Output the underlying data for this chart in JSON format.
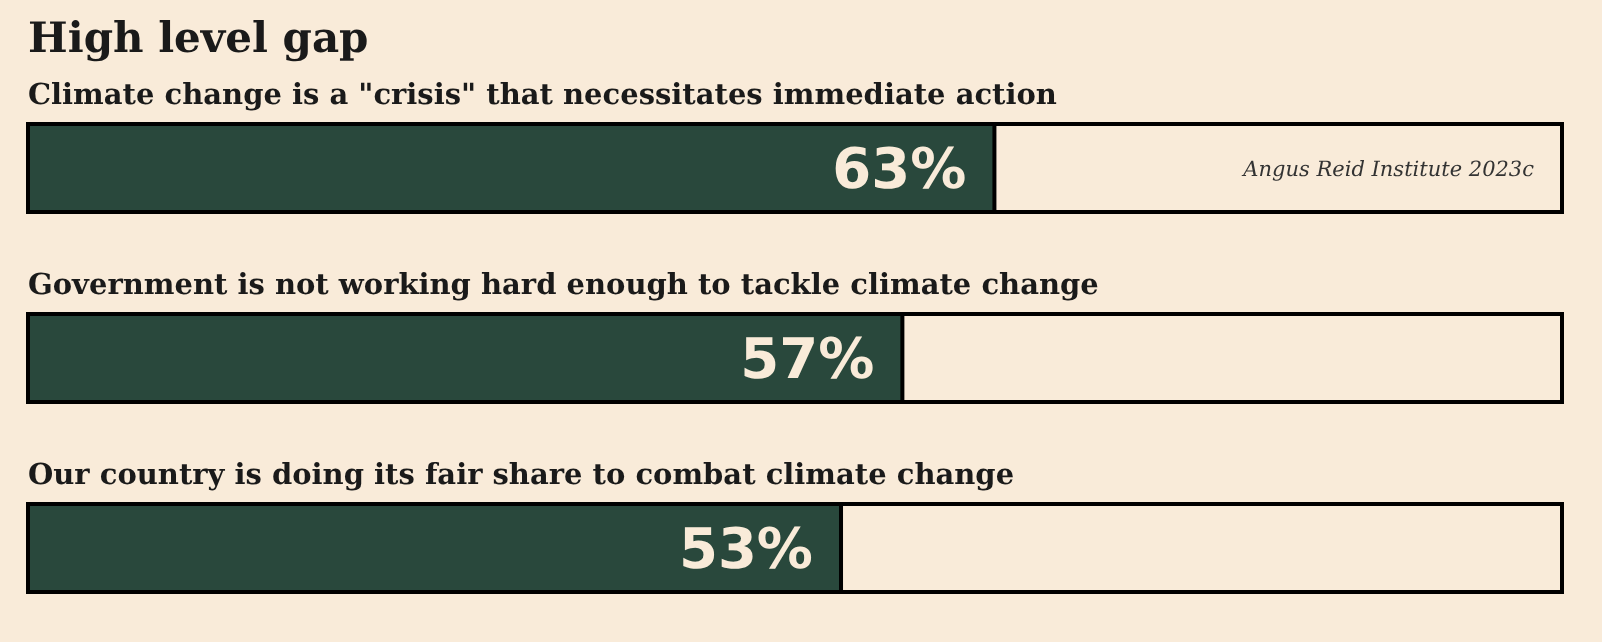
{
  "chart_data": {
    "type": "bar",
    "orientation": "horizontal",
    "title": "High level gap",
    "categories": [
      "Climate change is a \"crisis\" that necessitates immediate action",
      "Government is not working hard enough to tackle climate change",
      "Our country is doing its fair share to combat climate change"
    ],
    "values": [
      63,
      57,
      53
    ],
    "color": "#29483c",
    "value_labels": [
      "63%",
      "57%",
      "53%"
    ],
    "xlim": [
      0,
      100
    ],
    "tick_labels": "y",
    "grid": false,
    "annotations": [
      "Angus Reid Institute 2023c"
    ]
  }
}
